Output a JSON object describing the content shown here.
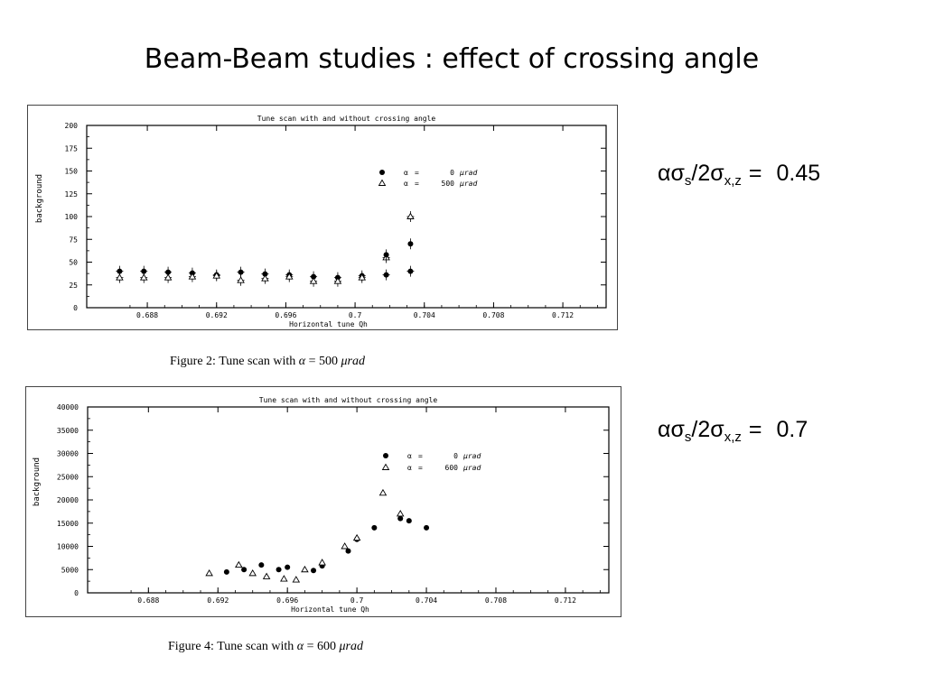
{
  "slide": {
    "title": "Beam-Beam studies : effect of crossing angle"
  },
  "annotations": [
    {
      "greek_a": "α",
      "greek_s": "σ",
      "sub_s": "s",
      "mid": "/2",
      "sub_xz": "x,z",
      "equals": "=",
      "value": "0.45"
    },
    {
      "greek_a": "α",
      "greek_s": "σ",
      "sub_s": "s",
      "mid": "/2",
      "sub_xz": "x,z",
      "equals": "=",
      "value": "0.7"
    }
  ],
  "captions": [
    {
      "prefix": "Figure 2:  Tune scan with ",
      "alpha": "α",
      "eq": " = 500 ",
      "unit": "μrad"
    },
    {
      "prefix": "Figure 4:  Tune scan with ",
      "alpha": "α",
      "eq": " = 600 ",
      "unit": "μrad"
    }
  ],
  "colors": {
    "ink": "#000000",
    "frame": "#444444",
    "background": "#ffffff"
  },
  "chart_data": [
    {
      "type": "scatter",
      "title": "Tune scan with and without crossing angle",
      "xlabel": "Horizontal tune Qh",
      "ylabel": "background",
      "xlim": [
        0.6845,
        0.7145
      ],
      "ylim": [
        0,
        200
      ],
      "x_ticks": [
        0.688,
        0.692,
        0.696,
        0.7,
        0.704,
        0.708,
        0.712
      ],
      "x_tick_labels": [
        "0.688",
        "0.692",
        "0.696",
        "0.7",
        "0.704",
        "0.708",
        "0.712"
      ],
      "y_ticks": [
        0,
        25,
        50,
        75,
        100,
        125,
        150,
        175,
        200
      ],
      "y_tick_labels": [
        "0",
        "25",
        "50",
        "75",
        "100",
        "125",
        "150",
        "175",
        "200"
      ],
      "error_bars": true,
      "legend": "top-right",
      "series": [
        {
          "name_alpha": "α",
          "name_eq": "=",
          "name_value": "0",
          "name_unit": "μrad",
          "marker": "filled-circle",
          "x": [
            0.6864,
            0.6878,
            0.6892,
            0.6906,
            0.692,
            0.6934,
            0.6948,
            0.6962,
            0.6976,
            0.699,
            0.7004,
            0.7018,
            0.7032
          ],
          "y": [
            40,
            40,
            39,
            38,
            36,
            39,
            37,
            36,
            34,
            33,
            35,
            36,
            40
          ]
        },
        {
          "name_alpha": "α",
          "name_eq": "=",
          "name_value": "500",
          "name_unit": "μrad",
          "marker": "open-triangle",
          "x": [
            0.6864,
            0.6878,
            0.6892,
            0.6906,
            0.692,
            0.6934,
            0.6948,
            0.6962,
            0.6976,
            0.699,
            0.7004,
            0.7018,
            0.7032
          ],
          "y": [
            33,
            33,
            33,
            34,
            35,
            30,
            32,
            34,
            29,
            29,
            33,
            55,
            100
          ]
        }
      ],
      "extra_points": [
        {
          "series": 0,
          "x": 0.7018,
          "y": 58
        },
        {
          "series": 0,
          "x": 0.7032,
          "y": 70
        }
      ]
    },
    {
      "type": "scatter",
      "title": "Tune scan with and without crossing angle",
      "xlabel": "Horizontal tune Qh",
      "ylabel": "background",
      "xlim": [
        0.6845,
        0.7145
      ],
      "ylim": [
        0,
        40000
      ],
      "x_ticks": [
        0.688,
        0.692,
        0.696,
        0.7,
        0.704,
        0.708,
        0.712
      ],
      "x_tick_labels": [
        "0.688",
        "0.692",
        "0.696",
        "0.7",
        "0.704",
        "0.708",
        "0.712"
      ],
      "y_ticks": [
        0,
        5000,
        10000,
        15000,
        20000,
        25000,
        30000,
        35000,
        40000
      ],
      "y_tick_labels": [
        "0",
        "5000",
        "10000",
        "15000",
        "20000",
        "25000",
        "30000",
        "35000",
        "40000"
      ],
      "legend": "top-right",
      "series": [
        {
          "name_alpha": "α",
          "name_eq": "=",
          "name_value": "0",
          "name_unit": "μrad",
          "marker": "filled-circle",
          "x": [
            0.6925,
            0.6935,
            0.6945,
            0.6955,
            0.696,
            0.6975,
            0.698,
            0.6995,
            0.7,
            0.701,
            0.7025,
            0.703,
            0.704
          ],
          "y": [
            4500,
            5000,
            6000,
            5000,
            5500,
            4800,
            5800,
            9000,
            11500,
            14000,
            16000,
            15500,
            14000
          ]
        },
        {
          "name_alpha": "α",
          "name_eq": "=",
          "name_value": "600",
          "name_unit": "μrad",
          "marker": "open-triangle",
          "x": [
            0.6915,
            0.6932,
            0.694,
            0.6948,
            0.6958,
            0.6965,
            0.697,
            0.698,
            0.6993,
            0.7,
            0.7015,
            0.7025
          ],
          "y": [
            4200,
            6000,
            4200,
            3500,
            3000,
            2800,
            5000,
            6500,
            10000,
            11800,
            21500,
            17000
          ]
        }
      ]
    }
  ]
}
